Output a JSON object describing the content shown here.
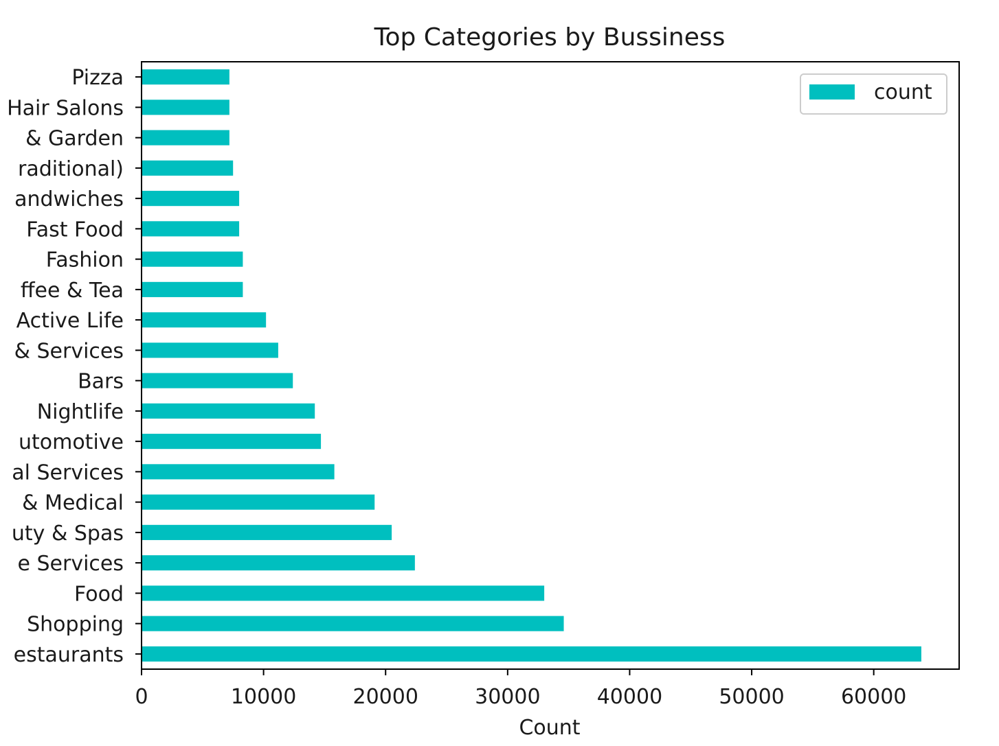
{
  "chart_data": {
    "type": "bar",
    "orientation": "horizontal",
    "title": "Top Categories by Bussiness",
    "xlabel": "Count",
    "ylabel": "",
    "xlim": [
      0,
      67000
    ],
    "xticks": [
      0,
      10000,
      20000,
      30000,
      40000,
      50000,
      60000
    ],
    "grid": false,
    "legend_position": "top-right",
    "bar_color": "#00bfbf",
    "categories": [
      "estaurants",
      "Shopping",
      "Food",
      "e Services",
      "uty & Spas",
      " & Medical",
      "al Services",
      "utomotive",
      "Nightlife",
      "Bars",
      "& Services",
      "Active Life",
      "ffee & Tea",
      "Fashion",
      "Fast Food",
      "andwiches",
      "raditional)",
      " & Garden",
      "Hair Salons",
      "Pizza"
    ],
    "series": [
      {
        "name": "count",
        "values": [
          63900,
          34600,
          33000,
          22400,
          20500,
          19100,
          15800,
          14700,
          14200,
          12400,
          11200,
          10200,
          8300,
          8300,
          8000,
          8000,
          7500,
          7200,
          7200,
          7200
        ]
      }
    ]
  }
}
